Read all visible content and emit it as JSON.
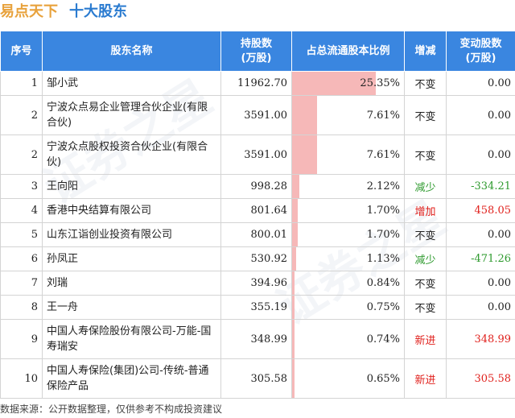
{
  "title": {
    "company": "易点天下",
    "section": "十大股东"
  },
  "table": {
    "headers": {
      "rank": "序号",
      "name": "股东名称",
      "shares_line1": "持股数",
      "shares_line2": "(万股)",
      "ratio": "占总流通股本比例",
      "change": "增减",
      "delta_line1": "变动股数",
      "delta_line2": "(万股)"
    },
    "rows": [
      {
        "rank": "1",
        "name": "邹小武",
        "shares": "11962.70",
        "ratio": "25.35%",
        "ratio_value": 25.35,
        "change": "不变",
        "change_type": "same",
        "delta": "0.00"
      },
      {
        "rank": "2",
        "name": "宁波众点易企业管理合伙企业(有限合伙)",
        "shares": "3591.00",
        "ratio": "7.61%",
        "ratio_value": 7.61,
        "change": "不变",
        "change_type": "same",
        "delta": "0.00"
      },
      {
        "rank": "2",
        "name": "宁波众点股权投资合伙企业(有限合伙)",
        "shares": "3591.00",
        "ratio": "7.61%",
        "ratio_value": 7.61,
        "change": "不变",
        "change_type": "same",
        "delta": "0.00"
      },
      {
        "rank": "3",
        "name": "王向阳",
        "shares": "998.28",
        "ratio": "2.12%",
        "ratio_value": 2.12,
        "change": "减少",
        "change_type": "down",
        "delta": "-334.21"
      },
      {
        "rank": "4",
        "name": "香港中央结算有限公司",
        "shares": "801.64",
        "ratio": "1.70%",
        "ratio_value": 1.7,
        "change": "增加",
        "change_type": "up",
        "delta": "458.05"
      },
      {
        "rank": "5",
        "name": "山东江诣创业投资有限公司",
        "shares": "800.01",
        "ratio": "1.70%",
        "ratio_value": 1.7,
        "change": "不变",
        "change_type": "same",
        "delta": "0.00"
      },
      {
        "rank": "6",
        "name": "孙凤正",
        "shares": "530.92",
        "ratio": "1.13%",
        "ratio_value": 1.13,
        "change": "减少",
        "change_type": "down",
        "delta": "-471.26"
      },
      {
        "rank": "7",
        "name": "刘瑞",
        "shares": "394.96",
        "ratio": "0.84%",
        "ratio_value": 0.84,
        "change": "不变",
        "change_type": "same",
        "delta": "0.00"
      },
      {
        "rank": "8",
        "name": "王一舟",
        "shares": "355.19",
        "ratio": "0.75%",
        "ratio_value": 0.75,
        "change": "不变",
        "change_type": "same",
        "delta": "0.00"
      },
      {
        "rank": "9",
        "name": "中国人寿保险股份有限公司-万能-国寿瑞安",
        "shares": "348.99",
        "ratio": "0.74%",
        "ratio_value": 0.74,
        "change": "新进",
        "change_type": "new",
        "delta": "348.99"
      },
      {
        "rank": "10",
        "name": "中国人寿保险(集团)公司-传统-普通保险产品",
        "shares": "305.58",
        "ratio": "0.65%",
        "ratio_value": 0.65,
        "change": "新进",
        "change_type": "new",
        "delta": "305.58"
      }
    ]
  },
  "ratio_bar_scale_max": 34,
  "watermark": "证券之星",
  "footer": "数据来源：公开数据整理，仅供参考不构成投资建议",
  "colors": {
    "header_bg": "#3a86e0",
    "title_company": "#e8a23c",
    "title_section": "#2a7bd0",
    "bar": "#f6b8b8",
    "up": "#e0201c",
    "down": "#2e9a2e"
  }
}
